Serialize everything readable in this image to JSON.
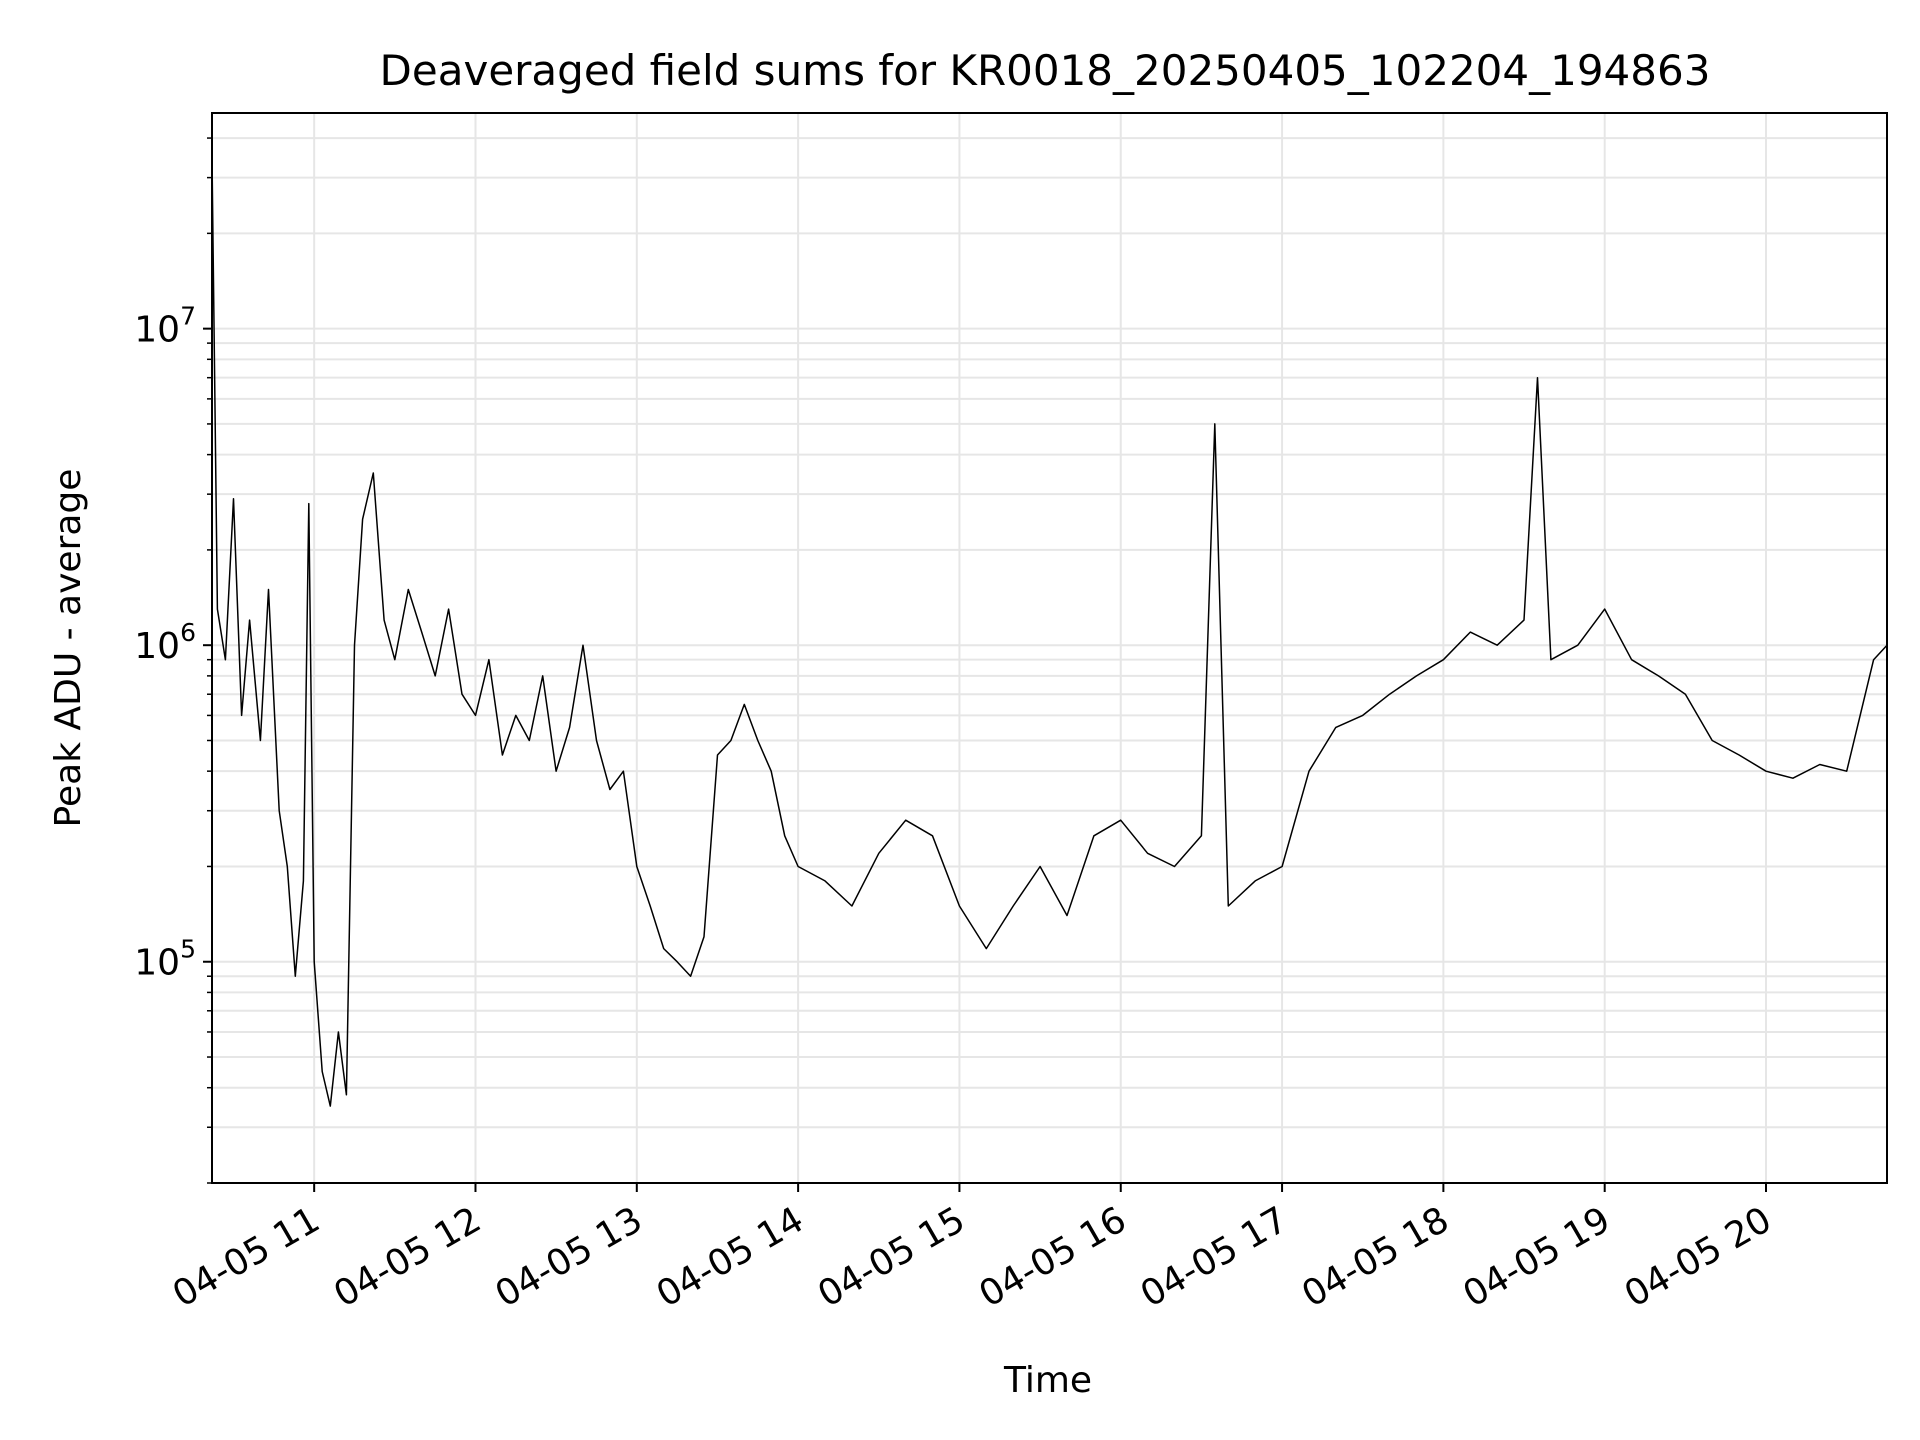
{
  "chart_data": {
    "type": "line",
    "title": "Deaveraged field sums for KR0018_20250405_102204_194863",
    "xlabel": "Time",
    "ylabel": "Peak ADU - average",
    "y_scale": "log",
    "ylim": [
      20000,
      48000000
    ],
    "xlim": [
      "04-05 10:22",
      "04-05 20:45"
    ],
    "grid": true,
    "grid_minor": true,
    "legend": "none",
    "line_color": "#000000",
    "x_ticks": [
      "04-05 11",
      "04-05 12",
      "04-05 13",
      "04-05 14",
      "04-05 15",
      "04-05 16",
      "04-05 17",
      "04-05 18",
      "04-05 19",
      "04-05 20"
    ],
    "y_ticks": [
      {
        "base": "10",
        "exp": "5",
        "value": 100000
      },
      {
        "base": "10",
        "exp": "6",
        "value": 1000000
      },
      {
        "base": "10",
        "exp": "7",
        "value": 10000000
      }
    ],
    "series": [
      {
        "values": [
          [
            "04-05 10:22",
            35000000
          ],
          [
            "04-05 10:24",
            1300000
          ],
          [
            "04-05 10:27",
            900000
          ],
          [
            "04-05 10:30",
            2900000
          ],
          [
            "04-05 10:33",
            600000
          ],
          [
            "04-05 10:36",
            1200000
          ],
          [
            "04-05 10:40",
            500000
          ],
          [
            "04-05 10:43",
            1500000
          ],
          [
            "04-05 10:47",
            300000
          ],
          [
            "04-05 10:50",
            200000
          ],
          [
            "04-05 10:53",
            90000
          ],
          [
            "04-05 10:56",
            180000
          ],
          [
            "04-05 10:58",
            2800000
          ],
          [
            "04-05 11:00",
            100000
          ],
          [
            "04-05 11:03",
            45000
          ],
          [
            "04-05 11:06",
            35000
          ],
          [
            "04-05 11:09",
            60000
          ],
          [
            "04-05 11:12",
            38000
          ],
          [
            "04-05 11:15",
            1000000
          ],
          [
            "04-05 11:18",
            2500000
          ],
          [
            "04-05 11:22",
            3500000
          ],
          [
            "04-05 11:26",
            1200000
          ],
          [
            "04-05 11:30",
            900000
          ],
          [
            "04-05 11:35",
            1500000
          ],
          [
            "04-05 11:40",
            1100000
          ],
          [
            "04-05 11:45",
            800000
          ],
          [
            "04-05 11:50",
            1300000
          ],
          [
            "04-05 11:55",
            700000
          ],
          [
            "04-05 12:00",
            600000
          ],
          [
            "04-05 12:05",
            900000
          ],
          [
            "04-05 12:10",
            450000
          ],
          [
            "04-05 12:15",
            600000
          ],
          [
            "04-05 12:20",
            500000
          ],
          [
            "04-05 12:25",
            800000
          ],
          [
            "04-05 12:30",
            400000
          ],
          [
            "04-05 12:35",
            550000
          ],
          [
            "04-05 12:40",
            1000000
          ],
          [
            "04-05 12:45",
            500000
          ],
          [
            "04-05 12:50",
            350000
          ],
          [
            "04-05 12:55",
            400000
          ],
          [
            "04-05 13:00",
            200000
          ],
          [
            "04-05 13:05",
            150000
          ],
          [
            "04-05 13:10",
            110000
          ],
          [
            "04-05 13:15",
            100000
          ],
          [
            "04-05 13:20",
            90000
          ],
          [
            "04-05 13:25",
            120000
          ],
          [
            "04-05 13:30",
            450000
          ],
          [
            "04-05 13:35",
            500000
          ],
          [
            "04-05 13:40",
            650000
          ],
          [
            "04-05 13:45",
            500000
          ],
          [
            "04-05 13:50",
            400000
          ],
          [
            "04-05 13:55",
            250000
          ],
          [
            "04-05 14:00",
            200000
          ],
          [
            "04-05 14:10",
            180000
          ],
          [
            "04-05 14:20",
            150000
          ],
          [
            "04-05 14:30",
            220000
          ],
          [
            "04-05 14:40",
            280000
          ],
          [
            "04-05 14:50",
            250000
          ],
          [
            "04-05 15:00",
            150000
          ],
          [
            "04-05 15:10",
            110000
          ],
          [
            "04-05 15:20",
            150000
          ],
          [
            "04-05 15:30",
            200000
          ],
          [
            "04-05 15:40",
            140000
          ],
          [
            "04-05 15:50",
            250000
          ],
          [
            "04-05 16:00",
            280000
          ],
          [
            "04-05 16:10",
            220000
          ],
          [
            "04-05 16:20",
            200000
          ],
          [
            "04-05 16:30",
            250000
          ],
          [
            "04-05 16:35",
            5000000
          ],
          [
            "04-05 16:40",
            150000
          ],
          [
            "04-05 16:50",
            180000
          ],
          [
            "04-05 17:00",
            200000
          ],
          [
            "04-05 17:10",
            400000
          ],
          [
            "04-05 17:20",
            550000
          ],
          [
            "04-05 17:30",
            600000
          ],
          [
            "04-05 17:40",
            700000
          ],
          [
            "04-05 17:50",
            800000
          ],
          [
            "04-05 18:00",
            900000
          ],
          [
            "04-05 18:10",
            1100000
          ],
          [
            "04-05 18:20",
            1000000
          ],
          [
            "04-05 18:30",
            1200000
          ],
          [
            "04-05 18:35",
            7000000
          ],
          [
            "04-05 18:40",
            900000
          ],
          [
            "04-05 18:50",
            1000000
          ],
          [
            "04-05 19:00",
            1300000
          ],
          [
            "04-05 19:10",
            900000
          ],
          [
            "04-05 19:20",
            800000
          ],
          [
            "04-05 19:30",
            700000
          ],
          [
            "04-05 19:40",
            500000
          ],
          [
            "04-05 19:50",
            450000
          ],
          [
            "04-05 20:00",
            400000
          ],
          [
            "04-05 20:10",
            380000
          ],
          [
            "04-05 20:20",
            420000
          ],
          [
            "04-05 20:30",
            400000
          ],
          [
            "04-05 20:40",
            900000
          ],
          [
            "04-05 20:45",
            1000000
          ]
        ]
      }
    ]
  }
}
